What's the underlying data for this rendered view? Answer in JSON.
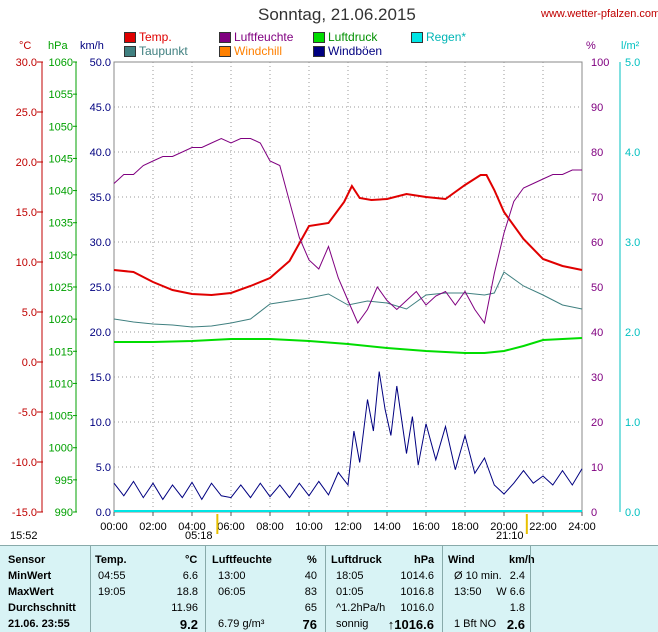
{
  "header": {
    "title": "Sonntag, 21.06.2015",
    "site": "www.wetter-pfalzen.com"
  },
  "axis_units": {
    "temp": "°C",
    "pressure": "hPa",
    "wind": "km/h",
    "humidity": "%",
    "rain": "l/m²"
  },
  "legend": [
    {
      "label": "Temp.",
      "color": "#e00000"
    },
    {
      "label": "Luftfeuchte",
      "color": "#800080"
    },
    {
      "label": "Luftdruck",
      "color": "#00dd00"
    },
    {
      "label": "Regen*",
      "color": "#00e5e5"
    },
    {
      "label": "Taupunkt",
      "color": "#408080"
    },
    {
      "label": "Windchill",
      "color": "#ff8000"
    },
    {
      "label": "Windböen",
      "color": "#000080"
    }
  ],
  "sun": {
    "before": "15:52",
    "sunrise": "05:18",
    "sunset": "21:10"
  },
  "chart_data": {
    "type": "line",
    "title": "Sonntag, 21.06.2015",
    "x_ticks": [
      "00:00",
      "02:00",
      "04:00",
      "06:00",
      "08:00",
      "10:00",
      "12:00",
      "14:00",
      "16:00",
      "18:00",
      "20:00",
      "22:00",
      "24:00"
    ],
    "temp_ticks": [
      "30.0",
      "25.0",
      "20.0",
      "15.0",
      "10.0",
      "5.0",
      "0.0",
      "-5.0",
      "-10.0",
      "-15.0"
    ],
    "pressure_ticks": [
      "1060",
      "1055",
      "1050",
      "1045",
      "1040",
      "1035",
      "1030",
      "1025",
      "1020",
      "1015",
      "1010",
      "1005",
      "1000",
      "995",
      "990"
    ],
    "wind_ticks": [
      "50.0",
      "45.0",
      "40.0",
      "35.0",
      "30.0",
      "25.0",
      "20.0",
      "15.0",
      "10.0",
      "5.0",
      "0.0"
    ],
    "humidity_ticks": [
      "100",
      "90",
      "80",
      "70",
      "60",
      "50",
      "40",
      "30",
      "20",
      "10",
      "0"
    ],
    "rain_ticks": [
      "5.0",
      "4.0",
      "3.0",
      "2.0",
      "1.0",
      "0.0"
    ],
    "xlim": [
      0,
      24
    ],
    "temp_ylim": [
      -15,
      30
    ],
    "series": [
      {
        "name": "Temp.",
        "axis": "temp",
        "color": "#e00000",
        "x": [
          0,
          1,
          2,
          3,
          4,
          5,
          6,
          7,
          8,
          9,
          10,
          11,
          11.8,
          12.2,
          12.6,
          13.2,
          14,
          15,
          16,
          17,
          18,
          18.8,
          19.1,
          19.5,
          20,
          21,
          22,
          23,
          24
        ],
        "y": [
          9.2,
          9.0,
          8.0,
          7.2,
          6.8,
          6.7,
          6.9,
          7.6,
          8.4,
          10.1,
          13.6,
          13.9,
          16.0,
          17.6,
          16.4,
          16.2,
          16.3,
          16.8,
          16.5,
          16.3,
          17.7,
          18.7,
          18.7,
          17.2,
          15.0,
          12.3,
          10.3,
          9.6,
          9.2
        ]
      },
      {
        "name": "Taupunkt",
        "axis": "temp",
        "color": "#408080",
        "x": [
          0,
          1,
          2,
          3,
          4,
          5,
          6,
          7,
          8,
          9,
          10,
          11,
          12,
          13,
          14,
          15,
          16,
          17,
          18,
          19,
          19.5,
          20,
          21,
          22,
          23,
          24
        ],
        "y": [
          4.3,
          4.0,
          3.8,
          3.7,
          3.5,
          3.6,
          3.9,
          4.3,
          5.8,
          6.1,
          6.4,
          6.8,
          5.7,
          6.1,
          5.9,
          5.3,
          6.7,
          6.9,
          6.9,
          6.7,
          6.9,
          9.0,
          7.6,
          6.7,
          5.7,
          5.3
        ]
      },
      {
        "name": "Luftdruck",
        "axis": "temp",
        "color": "#00dd00",
        "x": [
          0,
          2,
          4,
          6,
          8,
          10,
          12,
          14,
          16,
          18,
          19,
          20,
          21,
          22,
          23,
          24
        ],
        "y": [
          2.0,
          2.0,
          2.1,
          2.3,
          2.3,
          2.1,
          1.8,
          1.4,
          1.1,
          0.9,
          0.9,
          1.1,
          1.6,
          2.2,
          2.3,
          2.4
        ]
      },
      {
        "name": "Luftfeuchte",
        "axis": "humidity",
        "color": "#800080",
        "x": [
          0,
          0.5,
          1,
          1.5,
          2,
          2.5,
          3,
          3.5,
          4,
          4.5,
          5,
          5.5,
          6,
          6.5,
          7,
          7.5,
          8,
          8.5,
          9,
          9.5,
          10,
          10.5,
          11,
          11.5,
          12,
          12.5,
          13,
          13.5,
          14,
          14.5,
          15,
          15.5,
          16,
          16.5,
          17,
          17.5,
          18,
          18.5,
          19,
          19.5,
          20,
          20.5,
          21,
          21.5,
          22,
          22.5,
          23,
          23.5,
          24
        ],
        "y": [
          73,
          75,
          75,
          77,
          78,
          79,
          79,
          80,
          81,
          81,
          82,
          83,
          82,
          83,
          83,
          82,
          78,
          77,
          69,
          61,
          56,
          54,
          59,
          52,
          47,
          42,
          45,
          50,
          47,
          45,
          47,
          49,
          46,
          48,
          49,
          46,
          49,
          45,
          42,
          53,
          62,
          69,
          72,
          73,
          74,
          75,
          75,
          76,
          76
        ]
      },
      {
        "name": "Windböen",
        "axis": "wind",
        "color": "#000080",
        "x": [
          0,
          0.5,
          1,
          1.5,
          2,
          2.5,
          3,
          3.5,
          4,
          4.5,
          5,
          5.5,
          6,
          6.5,
          7,
          7.5,
          8,
          8.5,
          9,
          9.5,
          10,
          10.5,
          11,
          11.5,
          12,
          12.3,
          12.6,
          13,
          13.3,
          13.6,
          13.9,
          14.2,
          14.5,
          15,
          15.3,
          15.6,
          16,
          16.5,
          17,
          17.5,
          18,
          18.5,
          19,
          19.5,
          20,
          20.5,
          21,
          21.5,
          22,
          22.5,
          23,
          23.5,
          24
        ],
        "y": [
          3.2,
          1.8,
          3.4,
          1.6,
          3.2,
          1.4,
          3.0,
          1.6,
          3.3,
          1.4,
          3.2,
          1.8,
          1.6,
          3.0,
          1.6,
          3.2,
          1.7,
          3.0,
          1.6,
          3.2,
          1.8,
          3.4,
          1.9,
          4.4,
          3.0,
          9.0,
          5.5,
          12.5,
          9.0,
          15.6,
          11.4,
          8.5,
          14.0,
          6.5,
          10.6,
          5.2,
          9.8,
          5.8,
          9.5,
          4.7,
          8.5,
          4.3,
          6.0,
          3.0,
          2.0,
          3.2,
          4.6,
          3.2,
          4.0,
          3.0,
          4.6,
          3.0,
          4.8
        ]
      }
    ]
  },
  "table": {
    "headers": [
      "Sensor",
      "Temp.",
      "°C",
      "Luftfeuchte",
      "%",
      "Luftdruck",
      "hPa",
      "Wind",
      "km/h"
    ],
    "rows": [
      {
        "label": "MinWert",
        "t_time": "04:55",
        "t_val": "6.6",
        "h_time": "13:00",
        "h_val": "40",
        "p_time": "18:05",
        "p_val": "1014.6",
        "w_label": "Ø 10 min.",
        "w_val": "2.4"
      },
      {
        "label": "MaxWert",
        "t_time": "19:05",
        "t_val": "18.8",
        "h_time": "06:05",
        "h_val": "83",
        "p_time": "01:05",
        "p_val": "1016.8",
        "w_label": "13:50",
        "w_val": "W 6.6"
      },
      {
        "label": "Durchschnitt",
        "t_time": "",
        "t_val": "11.96",
        "h_time": "",
        "h_val": "65",
        "p_time": "^1.2hPa/h",
        "p_val": "1016.0",
        "w_label": "",
        "w_val": "1.8"
      },
      {
        "label": "21.06. 23:55",
        "t_time": "",
        "t_val": "9.2",
        "h_time": "6.79 g/m³",
        "h_val": "76",
        "p_time": "sonnig",
        "p_val": "↑1016.6",
        "w_label": "1 Bft NO",
        "w_val": "2.6"
      }
    ]
  }
}
